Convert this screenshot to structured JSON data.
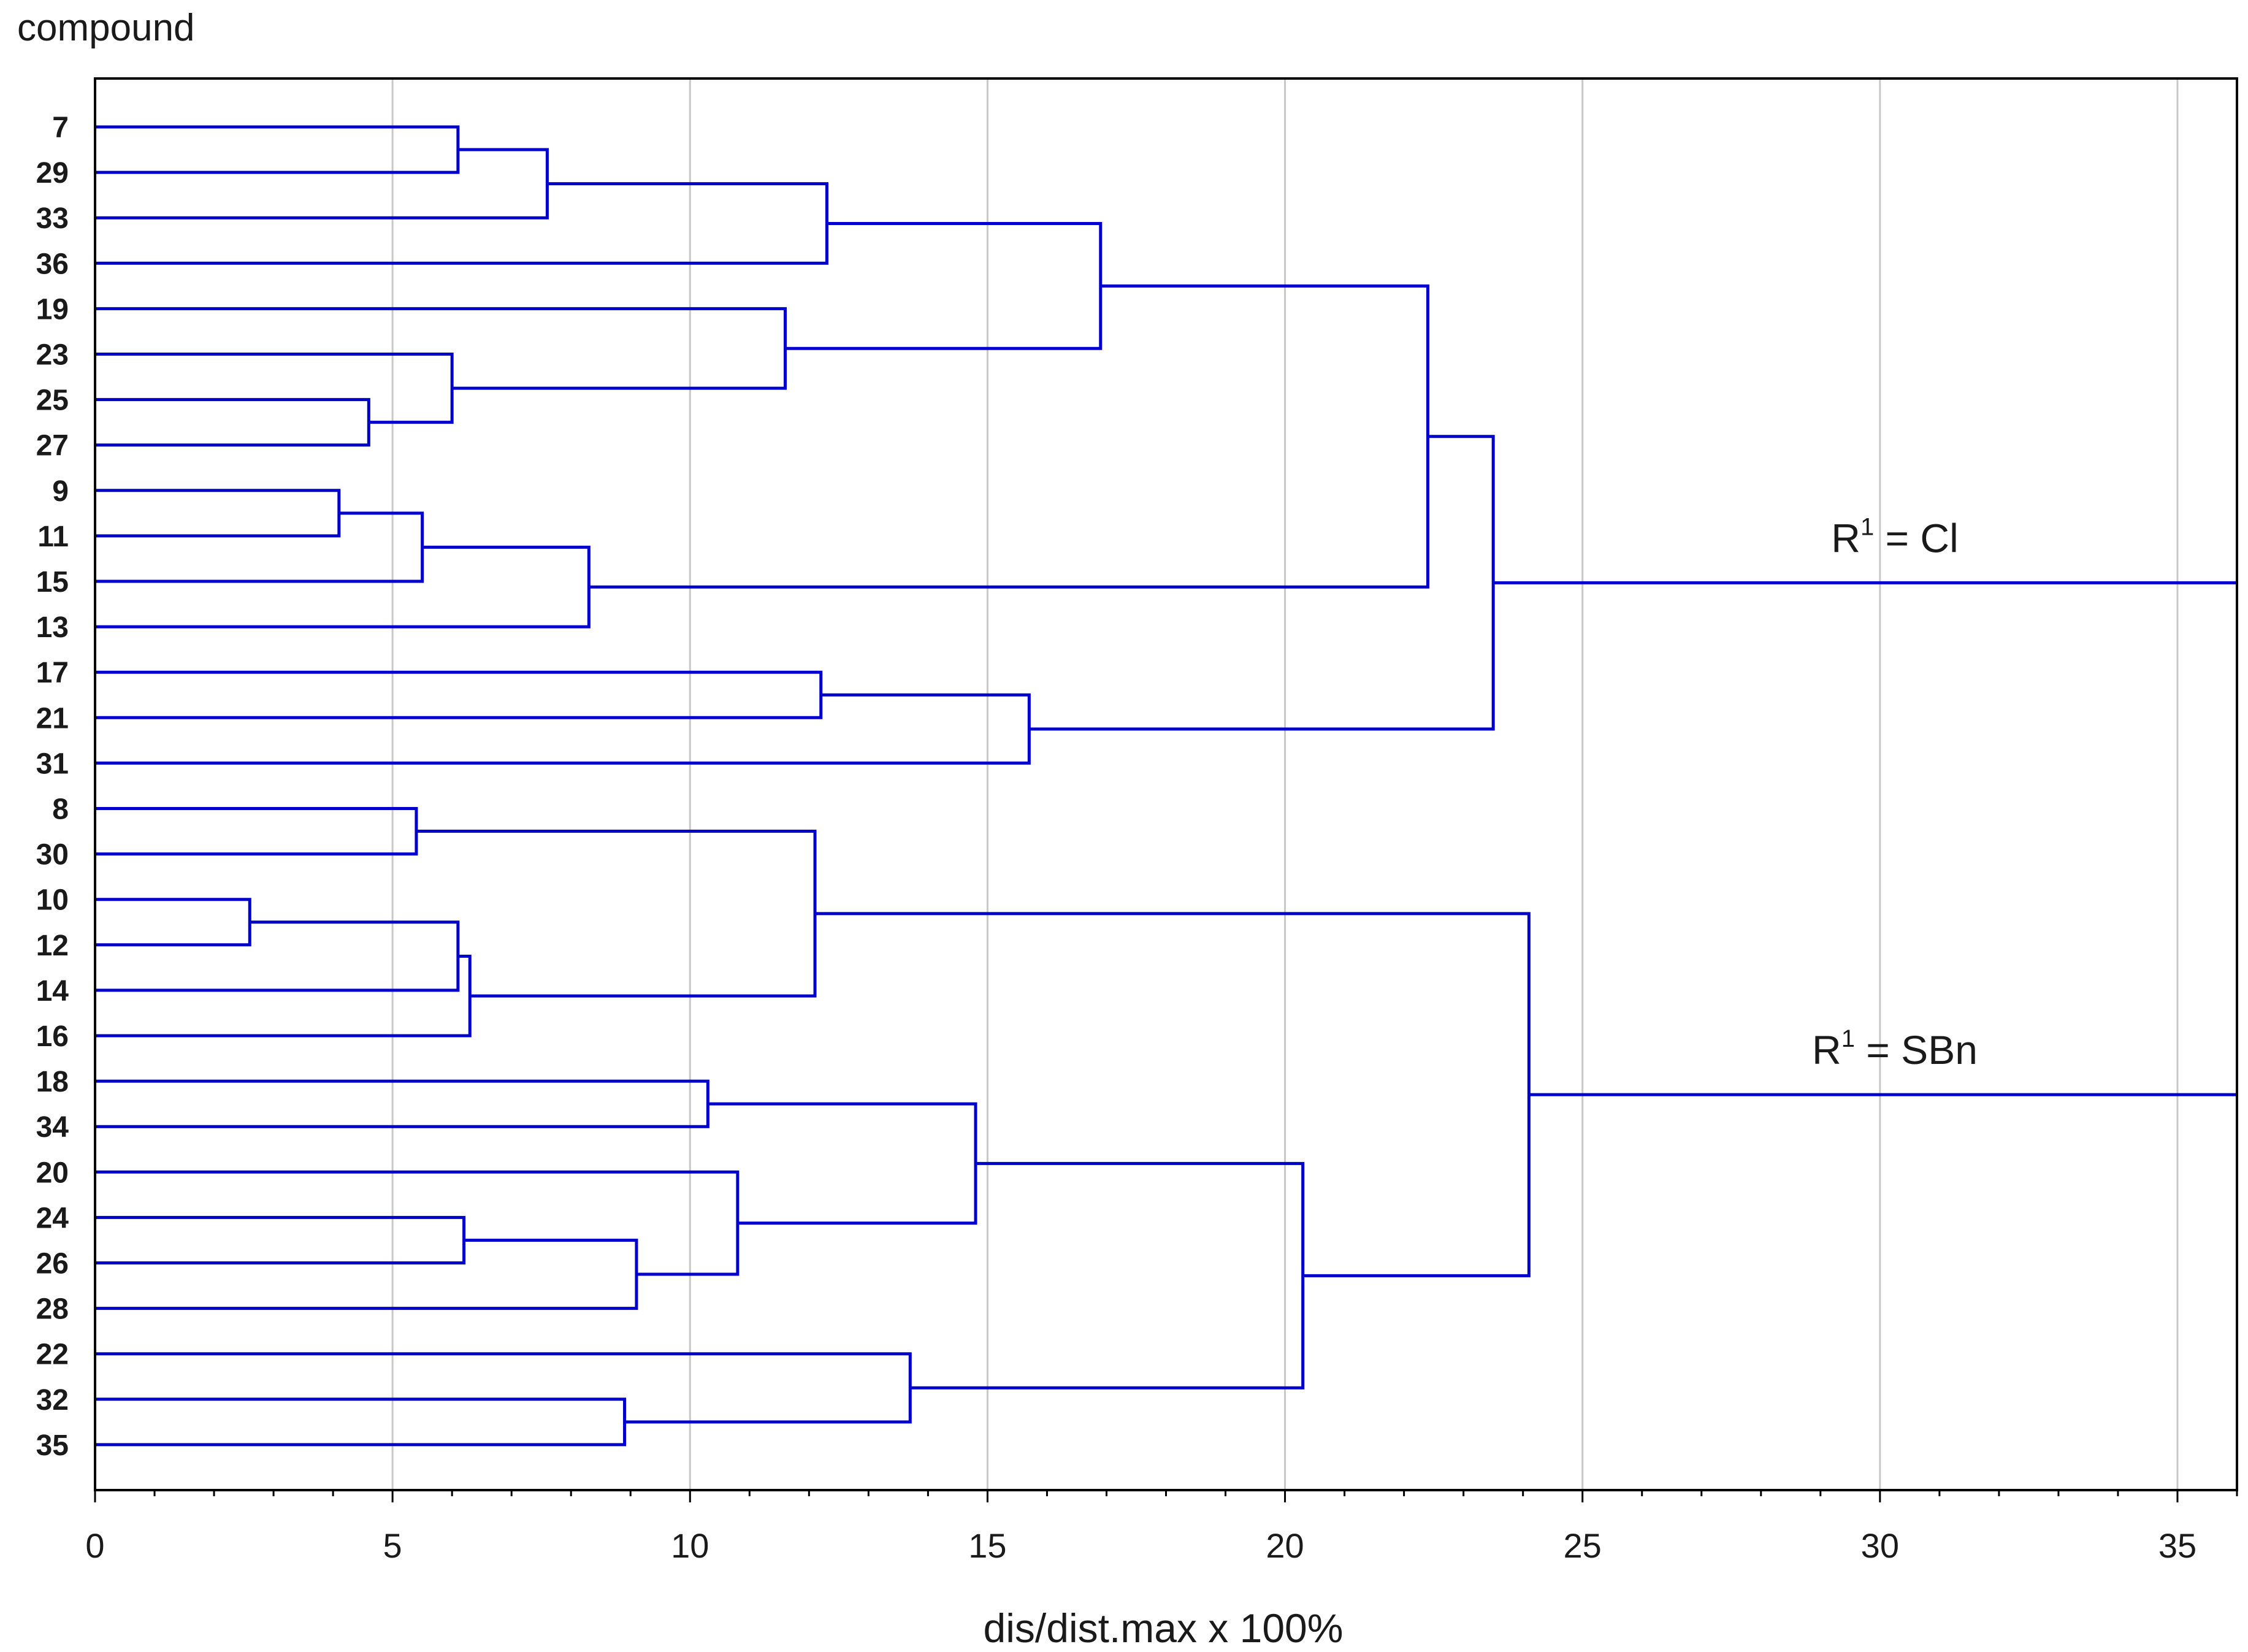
{
  "chart_data": {
    "type": "dendrogram",
    "title": "",
    "ylabel": "compound",
    "xlabel": "dis/dist.max x 100%",
    "xlim": [
      0,
      36
    ],
    "xticks": [
      0,
      5,
      10,
      15,
      20,
      25,
      30,
      35
    ],
    "grid": true,
    "leaves": [
      "7",
      "29",
      "33",
      "36",
      "19",
      "23",
      "25",
      "27",
      "9",
      "11",
      "15",
      "13",
      "17",
      "21",
      "31",
      "8",
      "30",
      "10",
      "12",
      "14",
      "16",
      "18",
      "34",
      "20",
      "24",
      "26",
      "28",
      "22",
      "32",
      "35"
    ],
    "merges": [
      {
        "id": "m1",
        "left": "10",
        "right": "12",
        "height": 2.6
      },
      {
        "id": "m2",
        "left": "9",
        "right": "11",
        "height": 4.1
      },
      {
        "id": "m3",
        "left": "25",
        "right": "27",
        "height": 4.6
      },
      {
        "id": "m4",
        "left": "8",
        "right": "30",
        "height": 5.4
      },
      {
        "id": "m5",
        "left": "m2",
        "right": "15",
        "height": 5.5
      },
      {
        "id": "m6",
        "left": "23",
        "right": "m3",
        "height": 6.0
      },
      {
        "id": "m7",
        "left": "7",
        "right": "29",
        "height": 6.1
      },
      {
        "id": "m8",
        "left": "m1",
        "right": "14",
        "height": 6.1
      },
      {
        "id": "m9",
        "left": "24",
        "right": "26",
        "height": 6.2
      },
      {
        "id": "m10",
        "left": "m8",
        "right": "16",
        "height": 6.3
      },
      {
        "id": "m11",
        "left": "m7",
        "right": "33",
        "height": 7.6
      },
      {
        "id": "m12",
        "left": "m5",
        "right": "13",
        "height": 8.3
      },
      {
        "id": "m13",
        "left": "32",
        "right": "35",
        "height": 8.9
      },
      {
        "id": "m14",
        "left": "m9",
        "right": "28",
        "height": 9.1
      },
      {
        "id": "m15",
        "left": "18",
        "right": "34",
        "height": 10.3
      },
      {
        "id": "m16",
        "left": "20",
        "right": "m14",
        "height": 10.8
      },
      {
        "id": "m17",
        "left": "19",
        "right": "m6",
        "height": 11.6
      },
      {
        "id": "m18",
        "left": "m4",
        "right": "m10",
        "height": 12.1
      },
      {
        "id": "m19",
        "left": "17",
        "right": "21",
        "height": 12.2
      },
      {
        "id": "m20",
        "left": "m11",
        "right": "36",
        "height": 12.3
      },
      {
        "id": "m21",
        "left": "22",
        "right": "m13",
        "height": 13.7
      },
      {
        "id": "m22",
        "left": "m15",
        "right": "m16",
        "height": 14.8
      },
      {
        "id": "m23",
        "left": "m19",
        "right": "31",
        "height": 15.7
      },
      {
        "id": "m24",
        "left": "m20",
        "right": "m17",
        "height": 16.9
      },
      {
        "id": "m25",
        "left": "m22",
        "right": "m21",
        "height": 20.3
      },
      {
        "id": "m26",
        "left": "m24",
        "right": "m12",
        "height": 22.4
      },
      {
        "id": "m27",
        "left": "m26",
        "right": "m23",
        "height": 23.5
      },
      {
        "id": "m28",
        "left": "m18",
        "right": "m25",
        "height": 24.1
      }
    ],
    "annotations": [
      {
        "cluster": "m27",
        "prefix": "R",
        "superscript": "1",
        "suffix": " = Cl"
      },
      {
        "cluster": "m28",
        "prefix": "R",
        "superscript": "1",
        "suffix": " = SBn"
      }
    ]
  },
  "colors": {
    "link": "#0000cc",
    "grid": "#c8c8c8",
    "frame": "#000000"
  }
}
